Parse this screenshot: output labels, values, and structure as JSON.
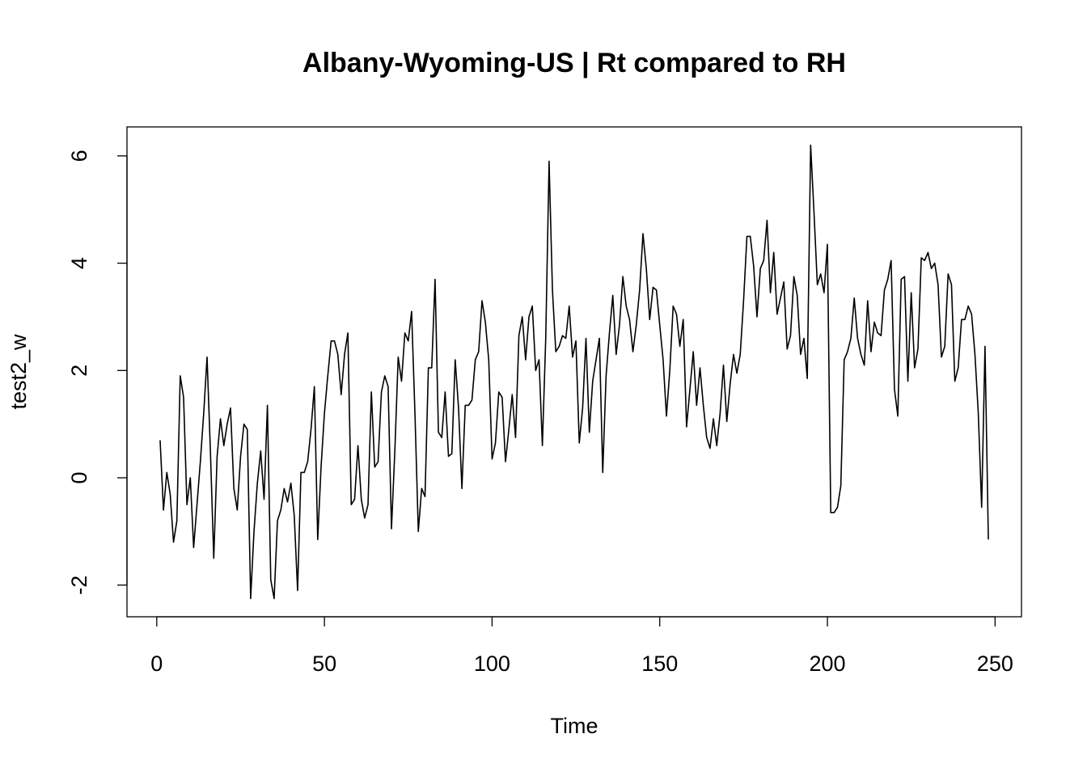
{
  "chart_data": {
    "type": "line",
    "title": "Albany-Wyoming-US | Rt compared to RH",
    "xlabel": "Time",
    "ylabel": "test2_w",
    "color": "#000000",
    "x": [
      1,
      2,
      3,
      4,
      5,
      6,
      7,
      8,
      9,
      10,
      11,
      12,
      13,
      14,
      15,
      16,
      17,
      18,
      19,
      20,
      21,
      22,
      23,
      24,
      25,
      26,
      27,
      28,
      29,
      30,
      31,
      32,
      33,
      34,
      35,
      36,
      37,
      38,
      39,
      40,
      41,
      42,
      43,
      44,
      45,
      46,
      47,
      48,
      49,
      50,
      51,
      52,
      53,
      54,
      55,
      56,
      57,
      58,
      59,
      60,
      61,
      62,
      63,
      64,
      65,
      66,
      67,
      68,
      69,
      70,
      71,
      72,
      73,
      74,
      75,
      76,
      77,
      78,
      79,
      80,
      81,
      82,
      83,
      84,
      85,
      86,
      87,
      88,
      89,
      90,
      91,
      92,
      93,
      94,
      95,
      96,
      97,
      98,
      99,
      100,
      101,
      102,
      103,
      104,
      105,
      106,
      107,
      108,
      109,
      110,
      111,
      112,
      113,
      114,
      115,
      116,
      117,
      118,
      119,
      120,
      121,
      122,
      123,
      124,
      125,
      126,
      127,
      128,
      129,
      130,
      131,
      132,
      133,
      134,
      135,
      136,
      137,
      138,
      139,
      140,
      141,
      142,
      143,
      144,
      145,
      146,
      147,
      148,
      149,
      150,
      151,
      152,
      153,
      154,
      155,
      156,
      157,
      158,
      159,
      160,
      161,
      162,
      163,
      164,
      165,
      166,
      167,
      168,
      169,
      170,
      171,
      172,
      173,
      174,
      175,
      176,
      177,
      178,
      179,
      180,
      181,
      182,
      183,
      184,
      185,
      186,
      187,
      188,
      189,
      190,
      191,
      192,
      193,
      194,
      195,
      196,
      197,
      198,
      199,
      200,
      201,
      202,
      203,
      204,
      205,
      206,
      207,
      208,
      209,
      210,
      211,
      212,
      213,
      214,
      215,
      216,
      217,
      218,
      219,
      220,
      221,
      222,
      223,
      224,
      225,
      226,
      227,
      228,
      229,
      230,
      231,
      232,
      233,
      234,
      235,
      236,
      237,
      238,
      239,
      240,
      241,
      242,
      243,
      244,
      245,
      246,
      247,
      248
    ],
    "values": [
      0.7,
      -0.6,
      0.1,
      -0.3,
      -1.2,
      -0.8,
      1.9,
      1.5,
      -0.5,
      0.0,
      -1.3,
      -0.5,
      0.3,
      1.2,
      2.25,
      0.5,
      -1.5,
      0.4,
      1.1,
      0.6,
      1.0,
      1.3,
      -0.2,
      -0.6,
      0.4,
      1.0,
      0.9,
      -2.25,
      -1.0,
      -0.1,
      0.5,
      -0.4,
      1.35,
      -1.9,
      -2.25,
      -0.8,
      -0.6,
      -0.2,
      -0.45,
      -0.1,
      -0.7,
      -2.1,
      0.1,
      0.1,
      0.3,
      0.9,
      1.7,
      -1.15,
      0.2,
      1.2,
      1.9,
      2.55,
      2.55,
      2.3,
      1.55,
      2.3,
      2.7,
      -0.5,
      -0.4,
      0.6,
      -0.4,
      -0.75,
      -0.5,
      1.6,
      0.2,
      0.3,
      1.6,
      1.9,
      1.7,
      -0.95,
      0.5,
      2.25,
      1.8,
      2.7,
      2.55,
      3.1,
      1.2,
      -1.0,
      -0.2,
      -0.35,
      2.05,
      2.05,
      3.7,
      0.85,
      0.75,
      1.6,
      0.4,
      0.45,
      2.2,
      1.3,
      -0.2,
      1.35,
      1.35,
      1.45,
      2.2,
      2.35,
      3.3,
      2.9,
      2.2,
      0.35,
      0.65,
      1.6,
      1.5,
      0.3,
      0.9,
      1.55,
      0.75,
      2.65,
      3.0,
      2.2,
      3.0,
      3.2,
      2.0,
      2.2,
      0.6,
      2.6,
      5.9,
      3.5,
      2.35,
      2.45,
      2.65,
      2.6,
      3.2,
      2.25,
      2.55,
      0.65,
      1.3,
      2.6,
      0.85,
      1.8,
      2.2,
      2.6,
      0.1,
      1.9,
      2.7,
      3.4,
      2.3,
      2.85,
      3.75,
      3.2,
      2.95,
      2.35,
      2.85,
      3.5,
      4.55,
      3.9,
      2.95,
      3.55,
      3.5,
      2.85,
      2.2,
      1.15,
      2.0,
      3.2,
      3.05,
      2.45,
      2.95,
      0.95,
      1.65,
      2.35,
      1.35,
      2.05,
      1.35,
      0.75,
      0.55,
      1.1,
      0.6,
      1.2,
      2.1,
      1.05,
      1.75,
      2.3,
      1.95,
      2.3,
      3.3,
      4.5,
      4.5,
      3.95,
      3.0,
      3.9,
      4.05,
      4.8,
      3.45,
      4.2,
      3.05,
      3.35,
      3.65,
      2.4,
      2.65,
      3.75,
      3.4,
      2.3,
      2.6,
      1.85,
      6.2,
      4.95,
      3.6,
      3.8,
      3.45,
      4.35,
      -0.65,
      -0.65,
      -0.55,
      -0.15,
      2.2,
      2.35,
      2.6,
      3.35,
      2.6,
      2.3,
      2.1,
      3.3,
      2.35,
      2.9,
      2.7,
      2.65,
      3.5,
      3.7,
      4.05,
      1.65,
      1.15,
      3.7,
      3.75,
      1.8,
      3.45,
      2.05,
      2.4,
      4.1,
      4.05,
      4.2,
      3.9,
      4.0,
      3.6,
      2.25,
      2.45,
      3.8,
      3.6,
      1.8,
      2.05,
      2.95,
      2.95,
      3.2,
      3.05,
      2.3,
      1.2,
      -0.55,
      2.45,
      -1.15
    ],
    "xlim": [
      -8.88,
      257.88
    ],
    "ylim": [
      -2.59,
      6.54
    ],
    "xticks": [
      0,
      50,
      100,
      150,
      200,
      250
    ],
    "yticks": [
      -2,
      0,
      2,
      4,
      6
    ]
  }
}
